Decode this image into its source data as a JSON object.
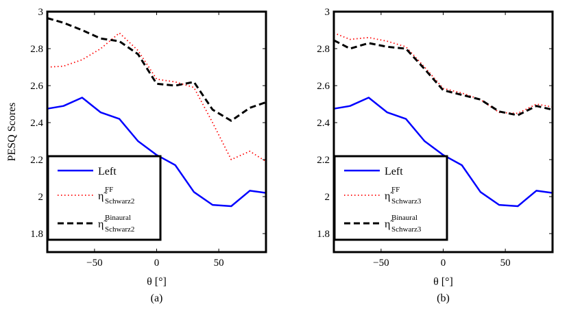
{
  "chart_data": [
    {
      "type": "line",
      "panel_label": "(a)",
      "xlabel": "θ [°]",
      "ylabel": "PESQ Scores",
      "xlim": [
        -88,
        88
      ],
      "ylim": [
        1.7,
        3.0
      ],
      "xticks": [
        -50,
        0,
        50
      ],
      "xtick_labels": [
        "−50",
        "0",
        "50"
      ],
      "yticks": [
        1.8,
        2.0,
        2.2,
        2.4,
        2.6,
        2.8,
        3.0
      ],
      "ytick_labels": [
        "1.8",
        "2",
        "2.2",
        "2.4",
        "2.6",
        "2.8",
        "3"
      ],
      "legend_position": "bottom-left",
      "series": [
        {
          "name": "Left",
          "label_main": "Left",
          "label_sup": "",
          "label_sub": "",
          "style": "solid",
          "color": "#0000ff",
          "x": [
            -88,
            -75,
            -60,
            -45,
            -30,
            -15,
            0,
            15,
            30,
            45,
            60,
            75,
            88
          ],
          "y": [
            2.475,
            2.49,
            2.535,
            2.455,
            2.42,
            2.3,
            2.225,
            2.17,
            2.025,
            1.955,
            1.948,
            2.032,
            2.02
          ]
        },
        {
          "name": "η̃ FF Schwarz2",
          "label_main": "η̃",
          "label_sup": "FF",
          "label_sub": "Schwarz2",
          "style": "dotted",
          "color": "#ff0000",
          "x": [
            -88,
            -75,
            -60,
            -45,
            -30,
            -15,
            0,
            15,
            30,
            45,
            60,
            75,
            88
          ],
          "y": [
            2.7,
            2.705,
            2.74,
            2.8,
            2.885,
            2.79,
            2.635,
            2.62,
            2.59,
            2.4,
            2.2,
            2.245,
            2.19
          ]
        },
        {
          "name": "η̃ Binaural Schwarz2",
          "label_main": "η̃",
          "label_sup": "Binaural",
          "label_sub": "Schwarz2",
          "style": "dashed",
          "color": "#000000",
          "x": [
            -88,
            -75,
            -60,
            -45,
            -30,
            -15,
            0,
            15,
            30,
            45,
            60,
            75,
            88
          ],
          "y": [
            2.965,
            2.94,
            2.9,
            2.855,
            2.84,
            2.77,
            2.61,
            2.6,
            2.62,
            2.47,
            2.41,
            2.48,
            2.51
          ]
        }
      ]
    },
    {
      "type": "line",
      "panel_label": "(b)",
      "xlabel": "θ [°]",
      "ylabel": "",
      "xlim": [
        -88,
        88
      ],
      "ylim": [
        1.7,
        3.0
      ],
      "xticks": [
        -50,
        0,
        50
      ],
      "xtick_labels": [
        "−50",
        "0",
        "50"
      ],
      "yticks": [
        1.8,
        2.0,
        2.2,
        2.4,
        2.6,
        2.8,
        3.0
      ],
      "ytick_labels": [
        "1.8",
        "2",
        "2.2",
        "2.4",
        "2.6",
        "2.8",
        "3"
      ],
      "legend_position": "bottom-left",
      "series": [
        {
          "name": "Left",
          "label_main": "Left",
          "label_sup": "",
          "label_sub": "",
          "style": "solid",
          "color": "#0000ff",
          "x": [
            -88,
            -75,
            -60,
            -45,
            -30,
            -15,
            0,
            15,
            30,
            45,
            60,
            75,
            88
          ],
          "y": [
            2.475,
            2.49,
            2.535,
            2.455,
            2.42,
            2.3,
            2.225,
            2.17,
            2.025,
            1.955,
            1.948,
            2.032,
            2.02
          ]
        },
        {
          "name": "η̃ FF Schwarz3",
          "label_main": "η̃",
          "label_sup": "FF",
          "label_sub": "Schwarz3",
          "style": "dotted",
          "color": "#ff0000",
          "x": [
            -88,
            -75,
            -60,
            -45,
            -30,
            -15,
            0,
            15,
            30,
            45,
            60,
            75,
            88
          ],
          "y": [
            2.885,
            2.85,
            2.86,
            2.84,
            2.81,
            2.7,
            2.585,
            2.56,
            2.525,
            2.455,
            2.45,
            2.5,
            2.485
          ]
        },
        {
          "name": "η̃ Binaural Schwarz3",
          "label_main": "η̃",
          "label_sup": "Binaural",
          "label_sub": "Schwarz3",
          "style": "dashed",
          "color": "#000000",
          "x": [
            -88,
            -75,
            -60,
            -45,
            -30,
            -15,
            0,
            15,
            30,
            45,
            60,
            75,
            88
          ],
          "y": [
            2.845,
            2.8,
            2.83,
            2.81,
            2.8,
            2.69,
            2.575,
            2.55,
            2.525,
            2.46,
            2.44,
            2.49,
            2.47
          ]
        }
      ]
    }
  ]
}
